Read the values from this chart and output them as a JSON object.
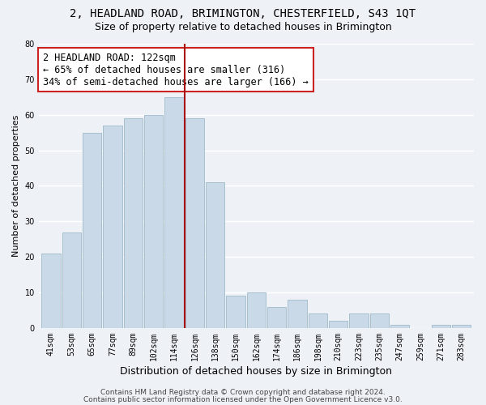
{
  "title": "2, HEADLAND ROAD, BRIMINGTON, CHESTERFIELD, S43 1QT",
  "subtitle": "Size of property relative to detached houses in Brimington",
  "xlabel": "Distribution of detached houses by size in Brimington",
  "ylabel": "Number of detached properties",
  "bar_labels": [
    "41sqm",
    "53sqm",
    "65sqm",
    "77sqm",
    "89sqm",
    "102sqm",
    "114sqm",
    "126sqm",
    "138sqm",
    "150sqm",
    "162sqm",
    "174sqm",
    "186sqm",
    "198sqm",
    "210sqm",
    "223sqm",
    "235sqm",
    "247sqm",
    "259sqm",
    "271sqm",
    "283sqm"
  ],
  "bar_values": [
    21,
    27,
    55,
    57,
    59,
    60,
    65,
    59,
    41,
    9,
    10,
    6,
    8,
    4,
    2,
    4,
    4,
    1,
    0,
    1,
    1
  ],
  "bar_color": "#c9d9e8",
  "bar_edge_color": "#a8bfcf",
  "vline_color": "#aa1111",
  "annotation_line1": "2 HEADLAND ROAD: 122sqm",
  "annotation_line2": "← 65% of detached houses are smaller (316)",
  "annotation_line3": "34% of semi-detached houses are larger (166) →",
  "annotation_box_color": "#ffffff",
  "annotation_box_edge": "#cc2222",
  "ylim": [
    0,
    80
  ],
  "yticks": [
    0,
    10,
    20,
    30,
    40,
    50,
    60,
    70,
    80
  ],
  "footer1": "Contains HM Land Registry data © Crown copyright and database right 2024.",
  "footer2": "Contains public sector information licensed under the Open Government Licence v3.0.",
  "background_color": "#eef2f7",
  "grid_color": "#ffffff",
  "title_fontsize": 10,
  "subtitle_fontsize": 9,
  "xlabel_fontsize": 9,
  "ylabel_fontsize": 8,
  "tick_fontsize": 7,
  "annotation_fontsize": 8.5,
  "footer_fontsize": 6.5
}
